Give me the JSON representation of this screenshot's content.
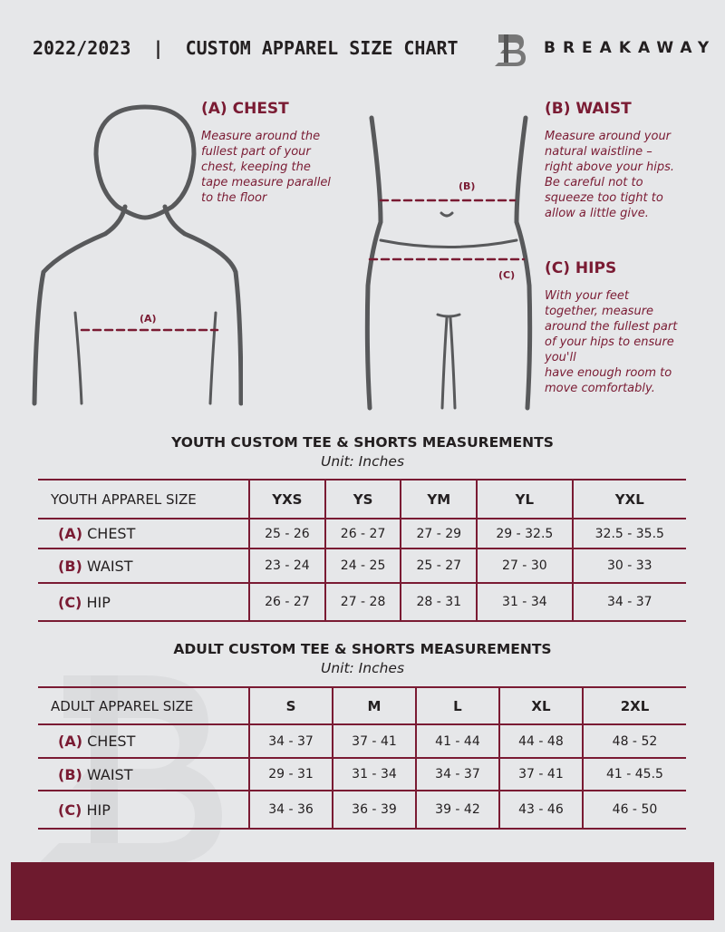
{
  "header": {
    "title": "2022/2023  |  CUSTOM APPAREL SIZE CHART",
    "brand": "BREAKAWAY"
  },
  "measures": {
    "chest": {
      "label": "(A) CHEST",
      "marker": "(A)",
      "text": [
        "Measure around the",
        "fullest part of your",
        "chest, keeping the",
        "tape measure parallel",
        "to the floor"
      ]
    },
    "waist": {
      "label": "(B) WAIST",
      "marker": "(B)",
      "text": [
        "Measure around your",
        "natural waistline –",
        "right above your hips.",
        "Be careful not to",
        "squeeze too tight to",
        "allow a little give."
      ]
    },
    "hips": {
      "label": "(C) HIPS",
      "marker": "(C)",
      "text": [
        "With your feet",
        "together, measure",
        "around the fullest part",
        "of your hips to ensure",
        "you'll",
        "have enough room to",
        "move comfortably."
      ]
    }
  },
  "youth": {
    "title": "YOUTH CUSTOM TEE & SHORTS MEASUREMENTS",
    "unit": "Unit: Inches",
    "header": "YOUTH APPAREL SIZE",
    "sizes": [
      "YXS",
      "YS",
      "YM",
      "YL",
      "YXL"
    ],
    "rows": [
      {
        "code": "(A)",
        "name": "CHEST",
        "values": [
          "25 - 26",
          "26 - 27",
          "27 - 29",
          "29 - 32.5",
          "32.5 - 35.5"
        ]
      },
      {
        "code": "(B)",
        "name": "WAIST",
        "values": [
          "23 - 24",
          "24 - 25",
          "25 - 27",
          "27 - 30",
          "30 - 33"
        ]
      },
      {
        "code": "(C)",
        "name": "HIP",
        "values": [
          "26 - 27",
          "27 - 28",
          "28 - 31",
          "31 - 34",
          "34 - 37"
        ]
      }
    ]
  },
  "adult": {
    "title": "ADULT CUSTOM TEE & SHORTS MEASUREMENTS",
    "unit": "Unit: Inches",
    "header": "ADULT APPAREL SIZE",
    "sizes": [
      "S",
      "M",
      "L",
      "XL",
      "2XL"
    ],
    "rows": [
      {
        "code": "(A)",
        "name": "CHEST",
        "values": [
          "34 - 37",
          "37 - 41",
          "41 - 44",
          "44 - 48",
          "48 - 52"
        ]
      },
      {
        "code": "(B)",
        "name": "WAIST",
        "values": [
          "29 - 31",
          "31 - 34",
          "34 - 37",
          "37 - 41",
          "41 - 45.5"
        ]
      },
      {
        "code": "(C)",
        "name": "HIP",
        "values": [
          "34 - 36",
          "36 - 39",
          "39 - 42",
          "43 - 46",
          "46 - 50"
        ]
      }
    ]
  },
  "colors": {
    "accent": "#7a1b33",
    "footer": "#6e1a2e",
    "background": "#e6e7e9"
  }
}
